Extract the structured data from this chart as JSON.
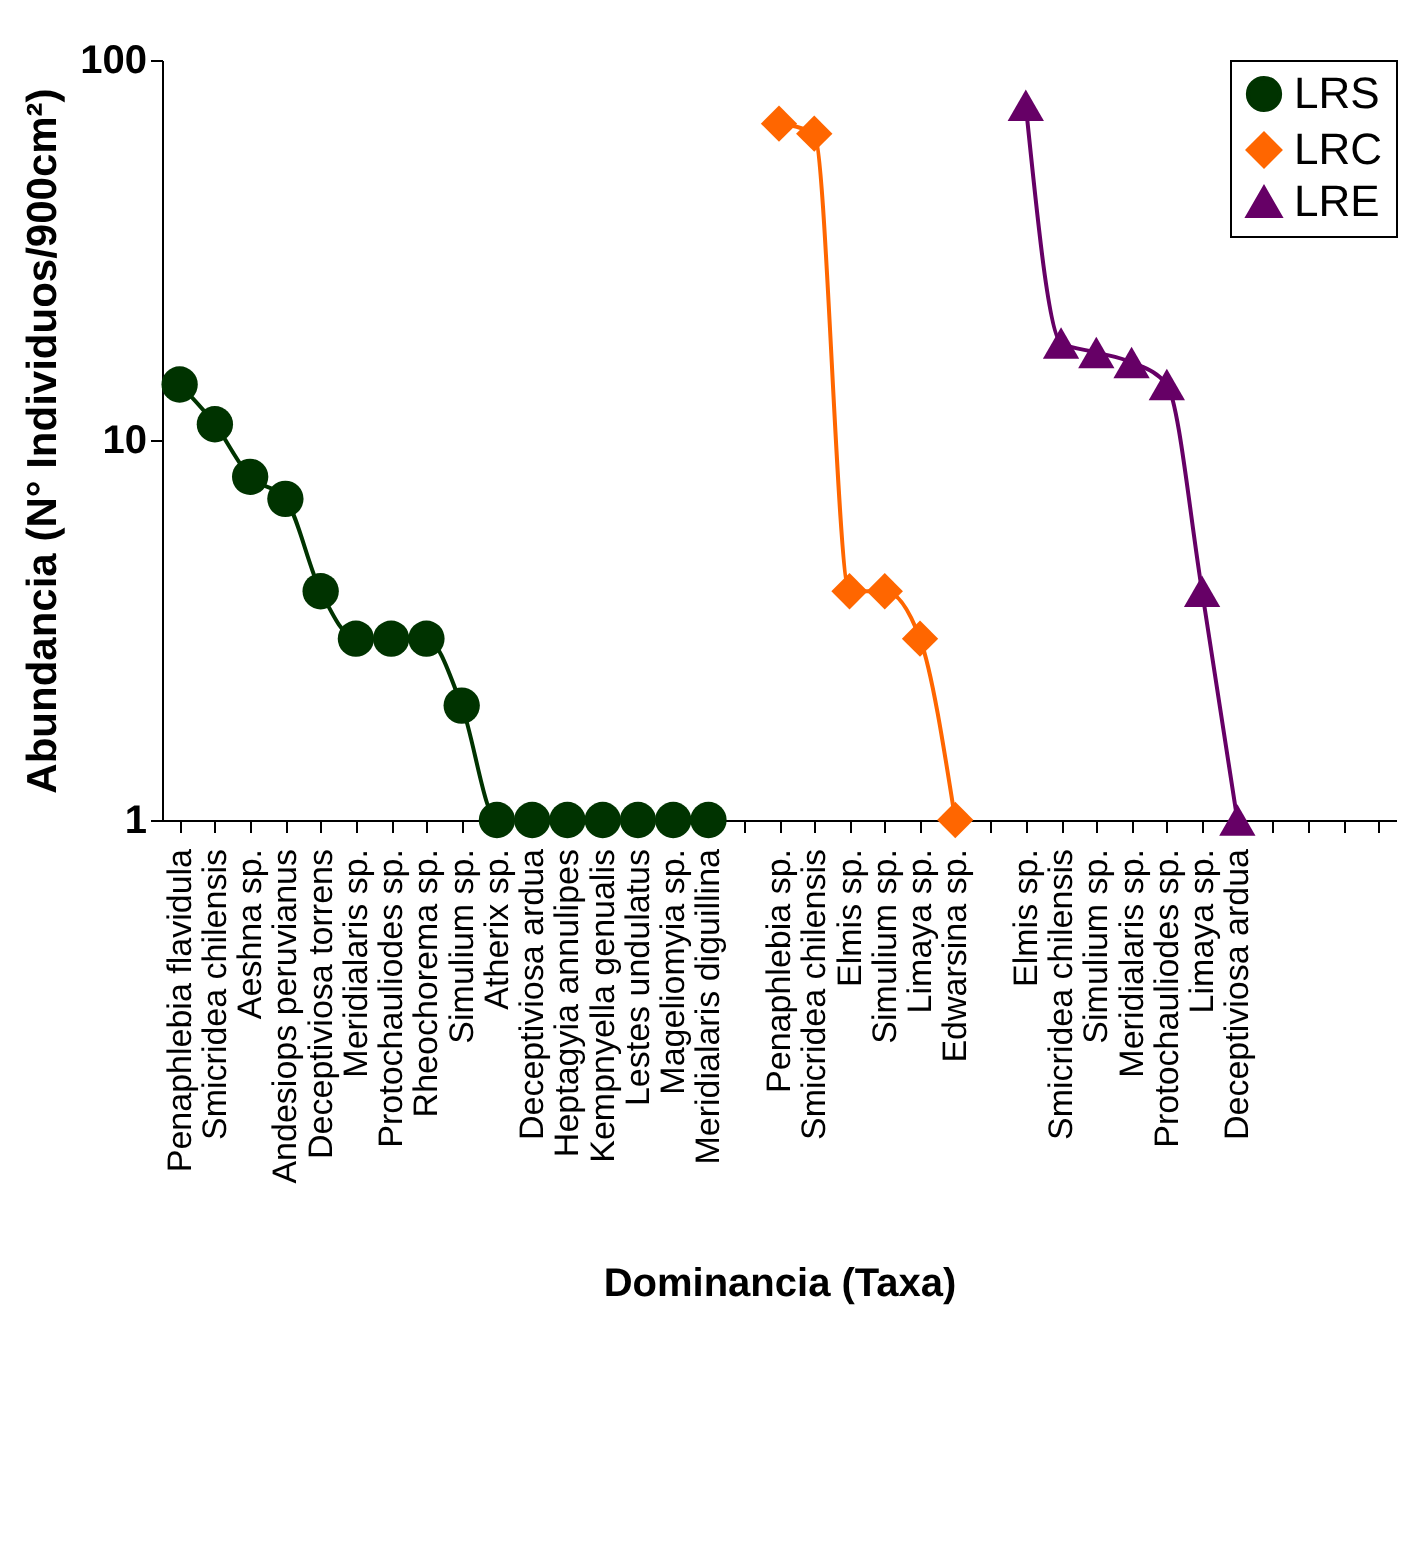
{
  "chart_data": {
    "type": "line",
    "xlabel": "Dominancia (Taxa)",
    "ylabel": "Abundancia  (N° Individuos/900cm²)",
    "categories": [
      "Penaphlebia flavidula",
      "Smicridea chilensis",
      "Aeshna sp.",
      "Andesiops peruvianus",
      "Deceptiviosa torrens",
      "Meridialaris sp.",
      "Protochauliodes sp.",
      "Rheochorema sp.",
      "Simulium sp.",
      "Atherix sp.",
      "Deceptiviosa ardua",
      "Heptagyia annulipes",
      "Kempnyella genualis",
      "Lestes undulatus",
      "Mageliomyia sp.",
      "Meridialaris diguillina",
      null,
      "Penaphlebia sp.",
      "Smicridea chilensis",
      "Elmis sp.",
      "Simulium sp.",
      "Limaya sp.",
      "Edwarsina sp.",
      null,
      "Elmis sp.",
      "Smicridea chilensis",
      "Simulium sp.",
      "Meridialaris sp.",
      "Protochauliodes sp.",
      "Limaya sp.",
      "Deceptiviosa ardua",
      null,
      null,
      null,
      null
    ],
    "series": [
      {
        "name": "LRS",
        "color": "#003300",
        "marker": "circle",
        "values": [
          14,
          11,
          8,
          7,
          4,
          3,
          3,
          3,
          2,
          1,
          1,
          1,
          1,
          1,
          1,
          1,
          null,
          null,
          null,
          null,
          null,
          null,
          null,
          null,
          null,
          null,
          null,
          null,
          null,
          null,
          null,
          null,
          null,
          null,
          null
        ]
      },
      {
        "name": "LRC",
        "color": "#ff6600",
        "marker": "diamond",
        "values": [
          null,
          null,
          null,
          null,
          null,
          null,
          null,
          null,
          null,
          null,
          null,
          null,
          null,
          null,
          null,
          null,
          null,
          68,
          64,
          4,
          4,
          3,
          1,
          null,
          null,
          null,
          null,
          null,
          null,
          null,
          null,
          null,
          null,
          null,
          null
        ]
      },
      {
        "name": "LRE",
        "color": "#660066",
        "marker": "triangle",
        "values": [
          null,
          null,
          null,
          null,
          null,
          null,
          null,
          null,
          null,
          null,
          null,
          null,
          null,
          null,
          null,
          null,
          null,
          null,
          null,
          null,
          null,
          null,
          null,
          null,
          76,
          18,
          17,
          16,
          14,
          4,
          1,
          null,
          null,
          null,
          null
        ]
      }
    ],
    "log": true,
    "ylim": [
      1,
      100
    ],
    "yticks": [
      1,
      10,
      100
    ],
    "grid": false,
    "legend": "top right"
  }
}
